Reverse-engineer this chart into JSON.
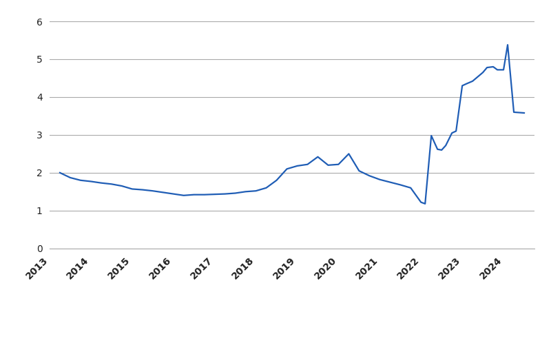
{
  "line_color": "#1f5db5",
  "line_width": 1.6,
  "background_color": "#ffffff",
  "grid_color": "#aaaaaa",
  "ylim": [
    0,
    6.2
  ],
  "yticks": [
    0,
    1,
    2,
    3,
    4,
    5,
    6
  ],
  "xlim_start": 2013.0,
  "xlim_end": 2024.75,
  "xtick_labels": [
    "2013",
    "2014",
    "2015",
    "2016",
    "2017",
    "2018",
    "2019",
    "2020",
    "2021",
    "2022",
    "2023",
    "2024"
  ],
  "data": [
    [
      2013.25,
      2.0
    ],
    [
      2013.5,
      1.87
    ],
    [
      2013.75,
      1.8
    ],
    [
      2014.0,
      1.77
    ],
    [
      2014.25,
      1.73
    ],
    [
      2014.5,
      1.7
    ],
    [
      2014.75,
      1.65
    ],
    [
      2015.0,
      1.57
    ],
    [
      2015.25,
      1.55
    ],
    [
      2015.5,
      1.52
    ],
    [
      2015.75,
      1.48
    ],
    [
      2016.0,
      1.44
    ],
    [
      2016.25,
      1.4
    ],
    [
      2016.5,
      1.42
    ],
    [
      2016.75,
      1.42
    ],
    [
      2017.0,
      1.43
    ],
    [
      2017.25,
      1.44
    ],
    [
      2017.5,
      1.46
    ],
    [
      2017.75,
      1.5
    ],
    [
      2018.0,
      1.52
    ],
    [
      2018.25,
      1.6
    ],
    [
      2018.5,
      1.8
    ],
    [
      2018.75,
      2.1
    ],
    [
      2019.0,
      2.18
    ],
    [
      2019.25,
      2.22
    ],
    [
      2019.5,
      2.42
    ],
    [
      2019.75,
      2.2
    ],
    [
      2020.0,
      2.22
    ],
    [
      2020.25,
      2.5
    ],
    [
      2020.5,
      2.05
    ],
    [
      2020.75,
      1.92
    ],
    [
      2021.0,
      1.82
    ],
    [
      2021.25,
      1.75
    ],
    [
      2021.5,
      1.68
    ],
    [
      2021.75,
      1.6
    ],
    [
      2022.0,
      1.22
    ],
    [
      2022.1,
      1.18
    ],
    [
      2022.25,
      2.98
    ],
    [
      2022.4,
      2.62
    ],
    [
      2022.5,
      2.6
    ],
    [
      2022.6,
      2.72
    ],
    [
      2022.75,
      3.05
    ],
    [
      2022.85,
      3.1
    ],
    [
      2023.0,
      4.3
    ],
    [
      2023.1,
      4.35
    ],
    [
      2023.25,
      4.42
    ],
    [
      2023.5,
      4.65
    ],
    [
      2023.6,
      4.78
    ],
    [
      2023.75,
      4.8
    ],
    [
      2023.85,
      4.72
    ],
    [
      2024.0,
      4.72
    ],
    [
      2024.1,
      5.38
    ],
    [
      2024.25,
      3.6
    ],
    [
      2024.5,
      3.58
    ]
  ]
}
